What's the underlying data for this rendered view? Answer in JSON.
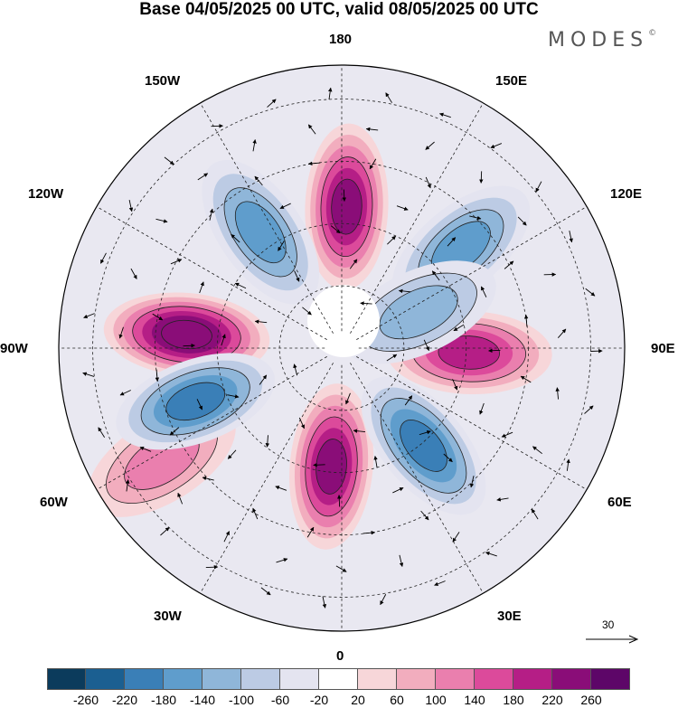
{
  "title": "Base 04/05/2025 00 UTC, valid 08/05/2025 00 UTC",
  "brand": "MODES",
  "brand_mark": "©",
  "longitude_labels": {
    "top": "180",
    "top_left": "150W",
    "top_right": "150E",
    "upper_left": "120W",
    "upper_right": "120E",
    "left": "90W",
    "right": "90E",
    "lower_left": "60W",
    "lower_right": "60E",
    "bottom_left": "30W",
    "bottom_right": "30E",
    "bottom": "0"
  },
  "wind_reference": {
    "label": "30"
  },
  "colorbar": {
    "colors": [
      "#0b3b5c",
      "#1b5f91",
      "#3a7fb7",
      "#5f9dcc",
      "#8fb6d9",
      "#bccbe4",
      "#e4e4f0",
      "#ffffff",
      "#f7d6d9",
      "#f2adbe",
      "#ea7fae",
      "#dc4a9b",
      "#b51e86",
      "#8a0d78",
      "#5d0668"
    ],
    "ticks": [
      "-260",
      "-220",
      "-180",
      "-140",
      "-100",
      "-60",
      "-20",
      "20",
      "60",
      "100",
      "140",
      "180",
      "220",
      "260"
    ]
  },
  "map_features": {
    "anomalies": [
      {
        "sign": "positive",
        "strength": 260,
        "lon": -95,
        "colat": 0.55
      },
      {
        "sign": "positive",
        "strength": 220,
        "lon": 178,
        "colat": 0.5
      },
      {
        "sign": "positive",
        "strength": 180,
        "lon": 88,
        "colat": 0.45
      },
      {
        "sign": "positive",
        "strength": 220,
        "lon": -5,
        "colat": 0.42
      },
      {
        "sign": "positive",
        "strength": 100,
        "lon": -58,
        "colat": 0.75
      },
      {
        "sign": "negative",
        "strength": 180,
        "lon": -70,
        "colat": 0.55
      },
      {
        "sign": "negative",
        "strength": 160,
        "lon": 130,
        "colat": 0.55
      },
      {
        "sign": "negative",
        "strength": 140,
        "lon": -145,
        "colat": 0.5
      },
      {
        "sign": "negative",
        "strength": 180,
        "lon": 40,
        "colat": 0.45
      },
      {
        "sign": "negative",
        "strength": 120,
        "lon": 115,
        "colat": 0.3
      }
    ]
  }
}
